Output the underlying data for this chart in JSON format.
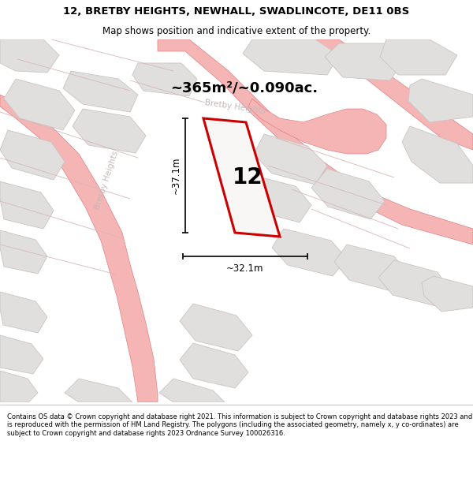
{
  "title_line1": "12, BRETBY HEIGHTS, NEWHALL, SWADLINCOTE, DE11 0BS",
  "title_line2": "Map shows position and indicative extent of the property.",
  "area_text": "~365m²/~0.090ac.",
  "property_number": "12",
  "dim_vertical": "~37.1m",
  "dim_horizontal": "~32.1m",
  "street_label": "Bretby Heights",
  "street_label2": "Bretby Heights",
  "footer_text": "Contains OS data © Crown copyright and database right 2021. This information is subject to Crown copyright and database rights 2023 and is reproduced with the permission of HM Land Registry. The polygons (including the associated geometry, namely x, y co-ordinates) are subject to Crown copyright and database rights 2023 Ordnance Survey 100026316.",
  "map_bg": "#f2f1f0",
  "plot_fill": "#f2f1f0",
  "plot_stroke": "#cc0000",
  "road_fill": "#f5b5b5",
  "road_edge": "#e08080",
  "building_fill": "#e0dfde",
  "building_edge": "#c8c5c2",
  "parcel_fill": "#eaeae8",
  "parcel_edge": "#d8b8b8",
  "dim_color": "#000000",
  "label_color": "#c8b8b8",
  "text_color": "#000000"
}
